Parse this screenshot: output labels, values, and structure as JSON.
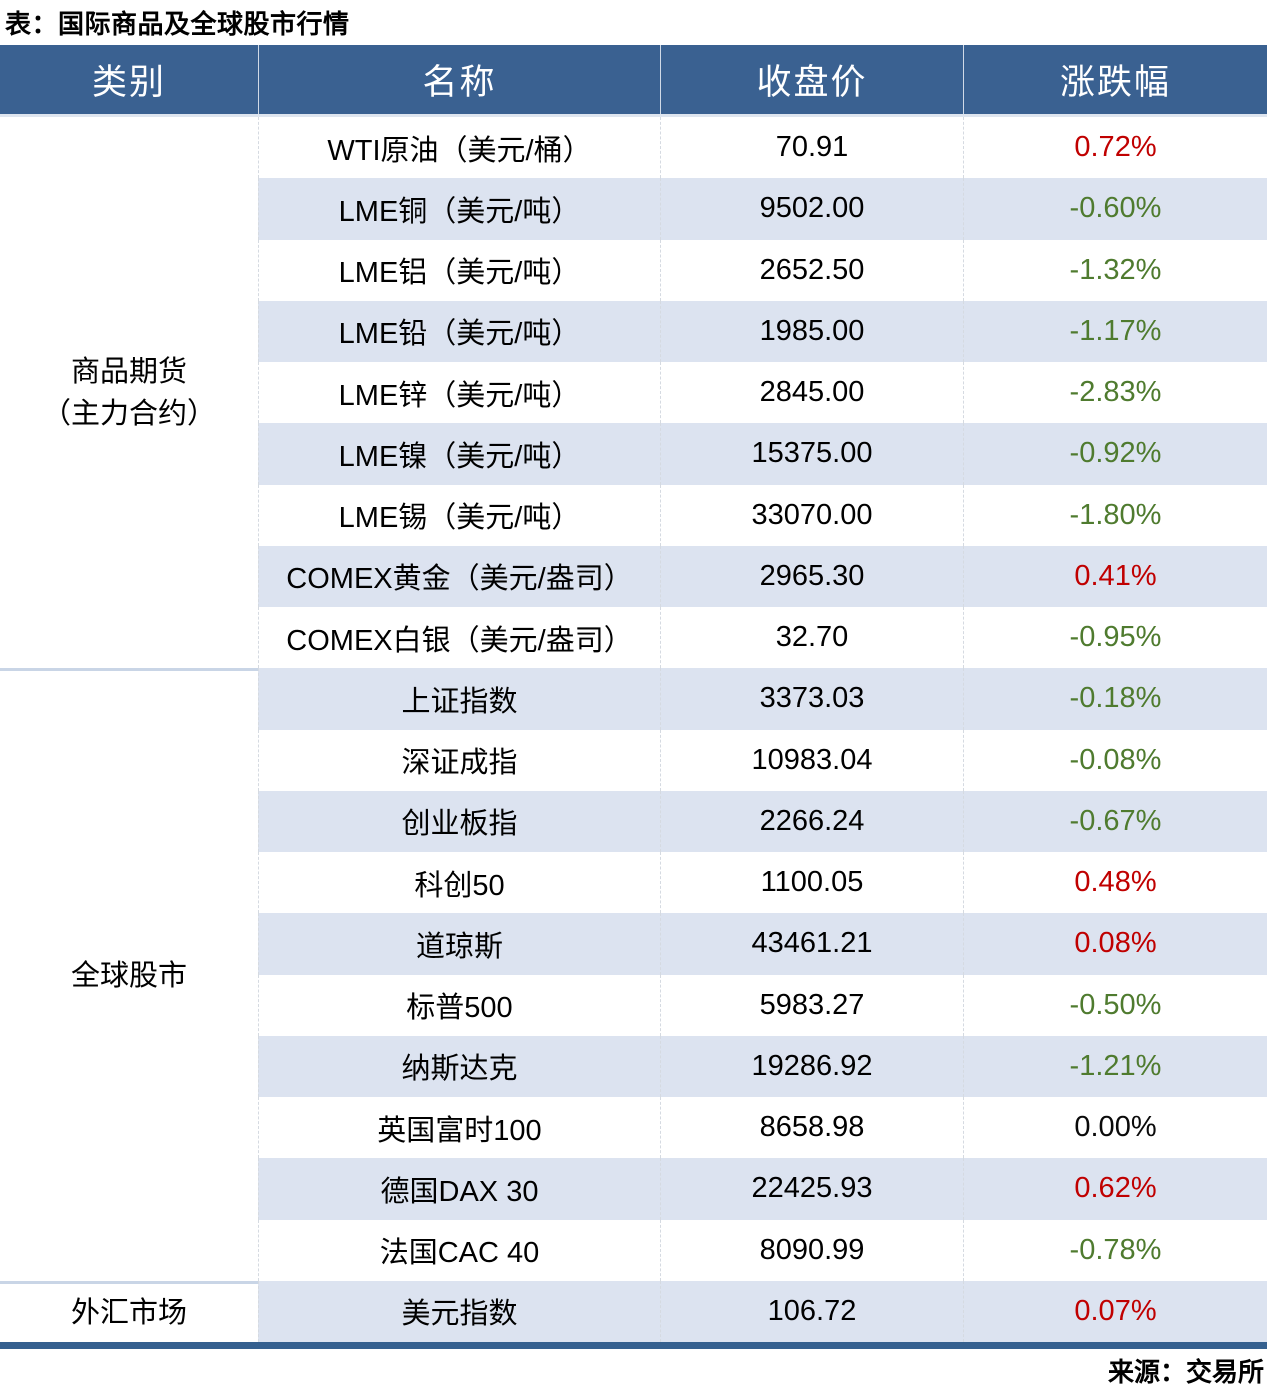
{
  "title": "表：国际商品及全球股市行情",
  "source": "来源：交易所",
  "colors": {
    "header_bg": "#3A6191",
    "stripe": "#DCE3F0",
    "up": "#C00000",
    "down": "#4F7B2F",
    "flat": "#0A0A0A",
    "bottom_bar": "#35608F"
  },
  "chart_data": {
    "type": "table",
    "title": "表：国际商品及全球股市行情",
    "columns": [
      "类别",
      "名称",
      "收盘价",
      "涨跌幅"
    ],
    "groups": [
      {
        "category": "商品期货（主力合约）",
        "category_lines": [
          "商品期货",
          "（主力合约）"
        ],
        "rows": [
          {
            "name": "WTI原油（美元/桶）",
            "close": "70.91",
            "change": "0.72%",
            "direction": "up"
          },
          {
            "name": "LME铜（美元/吨）",
            "close": "9502.00",
            "change": "-0.60%",
            "direction": "down"
          },
          {
            "name": "LME铝（美元/吨）",
            "close": "2652.50",
            "change": "-1.32%",
            "direction": "down"
          },
          {
            "name": "LME铅（美元/吨）",
            "close": "1985.00",
            "change": "-1.17%",
            "direction": "down"
          },
          {
            "name": "LME锌（美元/吨）",
            "close": "2845.00",
            "change": "-2.83%",
            "direction": "down"
          },
          {
            "name": "LME镍（美元/吨）",
            "close": "15375.00",
            "change": "-0.92%",
            "direction": "down"
          },
          {
            "name": "LME锡（美元/吨）",
            "close": "33070.00",
            "change": "-1.80%",
            "direction": "down"
          },
          {
            "name": "COMEX黄金（美元/盎司）",
            "close": "2965.30",
            "change": "0.41%",
            "direction": "up"
          },
          {
            "name": "COMEX白银（美元/盎司）",
            "close": "32.70",
            "change": "-0.95%",
            "direction": "down"
          }
        ]
      },
      {
        "category": "全球股市",
        "category_lines": [
          "全球股市"
        ],
        "rows": [
          {
            "name": "上证指数",
            "close": "3373.03",
            "change": "-0.18%",
            "direction": "down"
          },
          {
            "name": "深证成指",
            "close": "10983.04",
            "change": "-0.08%",
            "direction": "down"
          },
          {
            "name": "创业板指",
            "close": "2266.24",
            "change": "-0.67%",
            "direction": "down"
          },
          {
            "name": "科创50",
            "close": "1100.05",
            "change": "0.48%",
            "direction": "up"
          },
          {
            "name": "道琼斯",
            "close": "43461.21",
            "change": "0.08%",
            "direction": "up"
          },
          {
            "name": "标普500",
            "close": "5983.27",
            "change": "-0.50%",
            "direction": "down"
          },
          {
            "name": "纳斯达克",
            "close": "19286.92",
            "change": "-1.21%",
            "direction": "down"
          },
          {
            "name": "英国富时100",
            "close": "8658.98",
            "change": "0.00%",
            "direction": "flat"
          },
          {
            "name": "德国DAX 30",
            "close": "22425.93",
            "change": "0.62%",
            "direction": "up"
          },
          {
            "name": "法国CAC 40",
            "close": "8090.99",
            "change": "-0.78%",
            "direction": "down"
          }
        ]
      },
      {
        "category": "外汇市场",
        "category_lines": [
          "外汇市场"
        ],
        "rows": [
          {
            "name": "美元指数",
            "close": "106.72",
            "change": "0.07%",
            "direction": "up"
          }
        ]
      }
    ]
  }
}
